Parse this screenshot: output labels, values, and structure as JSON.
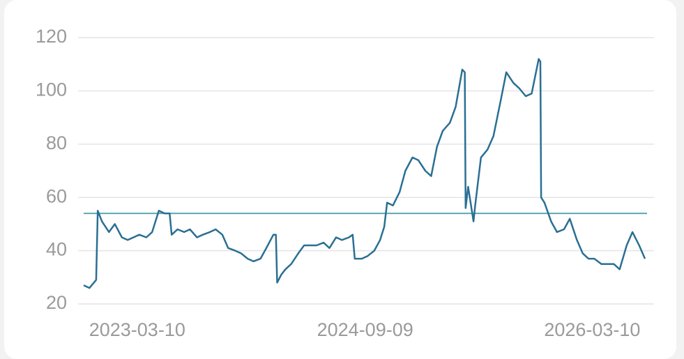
{
  "chart_data": {
    "type": "line",
    "x": [
      "2022-11-01",
      "2022-11-15",
      "2022-12-01",
      "2022-12-05",
      "2022-12-15",
      "2023-01-01",
      "2023-01-15",
      "2023-02-01",
      "2023-02-15",
      "2023-03-01",
      "2023-03-15",
      "2023-04-01",
      "2023-04-15",
      "2023-05-01",
      "2023-05-15",
      "2023-05-27",
      "2023-06-01",
      "2023-06-15",
      "2023-07-01",
      "2023-07-15",
      "2023-08-01",
      "2023-08-15",
      "2023-09-01",
      "2023-09-15",
      "2023-10-01",
      "2023-10-15",
      "2023-11-01",
      "2023-11-15",
      "2023-12-01",
      "2023-12-15",
      "2024-01-01",
      "2024-01-15",
      "2024-02-01",
      "2024-02-07",
      "2024-02-10",
      "2024-02-20",
      "2024-03-01",
      "2024-03-15",
      "2024-04-01",
      "2024-04-15",
      "2024-05-01",
      "2024-05-15",
      "2024-06-01",
      "2024-06-15",
      "2024-07-01",
      "2024-07-15",
      "2024-08-01",
      "2024-08-10",
      "2024-08-15",
      "2024-09-01",
      "2024-09-15",
      "2024-10-01",
      "2024-10-15",
      "2024-10-25",
      "2024-11-01",
      "2024-11-15",
      "2024-12-01",
      "2024-12-15",
      "2025-01-01",
      "2025-01-15",
      "2025-02-01",
      "2025-02-15",
      "2025-03-01",
      "2025-03-15",
      "2025-04-01",
      "2025-04-15",
      "2025-05-01",
      "2025-05-07",
      "2025-05-09",
      "2025-05-15",
      "2025-05-28",
      "2025-06-01",
      "2025-06-15",
      "2025-07-01",
      "2025-07-15",
      "2025-08-01",
      "2025-08-15",
      "2025-09-01",
      "2025-09-15",
      "2025-10-01",
      "2025-10-15",
      "2025-11-01",
      "2025-11-05",
      "2025-11-07",
      "2025-11-15",
      "2025-12-01",
      "2025-12-15",
      "2026-01-01",
      "2026-01-15",
      "2026-02-01",
      "2026-02-15",
      "2026-03-01",
      "2026-03-15",
      "2026-04-01",
      "2026-04-15",
      "2026-05-01",
      "2026-05-15",
      "2026-06-01",
      "2026-06-15",
      "2026-07-01",
      "2026-07-15"
    ],
    "series": [
      {
        "color": "#2a6f93",
        "values": [
          27,
          26,
          29,
          55,
          51,
          47,
          50,
          45,
          44,
          45,
          46,
          45,
          47,
          55,
          54,
          54,
          46,
          48,
          47,
          48,
          45,
          46,
          47,
          48,
          46,
          41,
          40,
          39,
          37,
          36,
          37,
          41,
          46,
          46,
          28,
          31,
          33,
          35,
          39,
          42,
          42,
          42,
          43,
          41,
          45,
          44,
          45,
          46,
          37,
          37,
          38,
          40,
          44,
          49,
          58,
          57,
          62,
          70,
          75,
          74,
          70,
          68,
          79,
          85,
          88,
          94,
          108,
          107,
          56,
          64,
          51,
          57,
          75,
          78,
          83,
          96,
          107,
          103,
          101,
          98,
          99,
          112,
          111,
          60,
          58,
          51,
          47,
          48,
          52,
          44,
          39,
          37,
          37,
          35,
          35,
          35,
          33,
          42,
          47,
          42,
          37
        ]
      }
    ],
    "reference_line": 54,
    "reference_color": "#5aa8b4",
    "xlim": [
      "2022-11-01",
      "2026-07-15"
    ],
    "xticks": [
      "2023-03-10",
      "2024-09-09",
      "2026-03-10"
    ],
    "ylim": [
      20,
      120
    ],
    "yticks": [
      20,
      40,
      60,
      80,
      100,
      120
    ],
    "grid": true
  }
}
